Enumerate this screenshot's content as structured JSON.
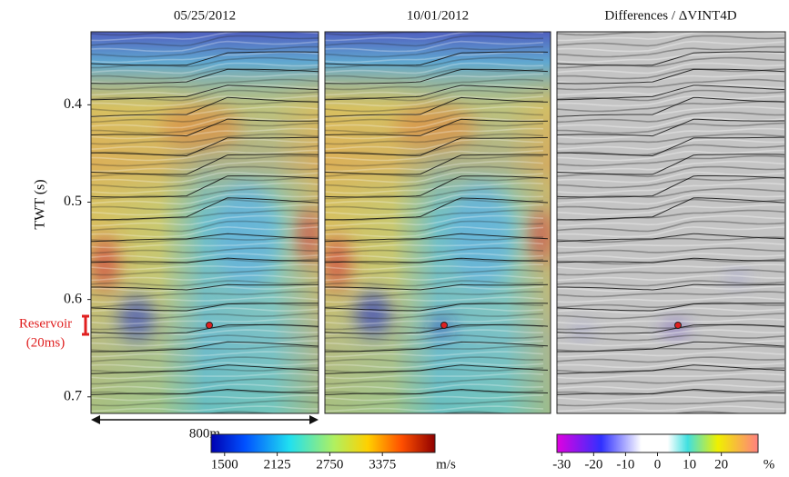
{
  "panels": [
    {
      "title": "05/25/2012"
    },
    {
      "title": "10/01/2012"
    },
    {
      "title": "Differences  / ΔVINT4D"
    }
  ],
  "y_axis": {
    "label": "TWT (s)",
    "ylim": [
      0.325,
      0.717
    ],
    "yticks": [
      0.4,
      0.5,
      0.6,
      0.7
    ]
  },
  "scale_bar": {
    "label": "800m"
  },
  "reservoir": {
    "label": "Reservoir",
    "sublabel": "(20ms)"
  },
  "colorbars": [
    {
      "xlim": [
        1340,
        4000
      ],
      "ticks": [
        1500,
        2125,
        2750,
        3375
      ],
      "unit": "m/s"
    },
    {
      "xlim": [
        -31.5,
        31.5
      ],
      "ticks": [
        -30,
        -20,
        -10,
        0,
        10,
        20
      ],
      "unit": "%"
    }
  ]
}
